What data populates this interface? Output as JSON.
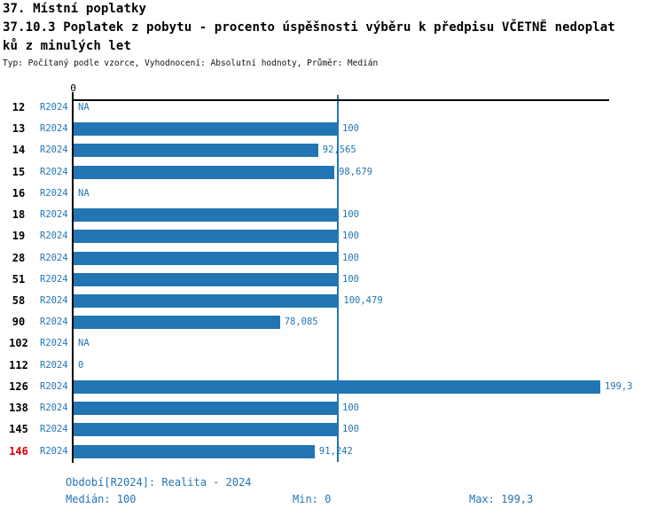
{
  "header": {
    "section_title": "37. Místní poplatky",
    "title_line1": "37.10.3 Poplatek z pobytu - procento úspěšnosti výběru k předpisu VČETNĚ nedoplat",
    "title_line2": "ků z minulých let",
    "meta": "Typ: Počítaný podle vzorce, Vyhodnocení: Absolutní hodnoty, Průměr: Medián"
  },
  "colors": {
    "bar_blue": "#2276b4",
    "highlight_red": "#dc0000",
    "axis_black": "#000000"
  },
  "chart": {
    "zero_tick": "0",
    "rows": [
      {
        "id": "12",
        "period": "R2024",
        "value": null,
        "label": "NA",
        "highlight": false
      },
      {
        "id": "13",
        "period": "R2024",
        "value": 100,
        "label": "100",
        "highlight": false
      },
      {
        "id": "14",
        "period": "R2024",
        "value": 92.565,
        "label": "92,565",
        "highlight": false
      },
      {
        "id": "15",
        "period": "R2024",
        "value": 98.679,
        "label": "98,679",
        "highlight": false
      },
      {
        "id": "16",
        "period": "R2024",
        "value": null,
        "label": "NA",
        "highlight": false
      },
      {
        "id": "18",
        "period": "R2024",
        "value": 100,
        "label": "100",
        "highlight": false
      },
      {
        "id": "19",
        "period": "R2024",
        "value": 100,
        "label": "100",
        "highlight": false
      },
      {
        "id": "28",
        "period": "R2024",
        "value": 100,
        "label": "100",
        "highlight": false
      },
      {
        "id": "51",
        "period": "R2024",
        "value": 100,
        "label": "100",
        "highlight": false
      },
      {
        "id": "58",
        "period": "R2024",
        "value": 100.479,
        "label": "100,479",
        "highlight": false
      },
      {
        "id": "90",
        "period": "R2024",
        "value": 78.085,
        "label": "78,085",
        "highlight": false
      },
      {
        "id": "102",
        "period": "R2024",
        "value": null,
        "label": "NA",
        "highlight": false
      },
      {
        "id": "112",
        "period": "R2024",
        "value": 0,
        "label": "0",
        "highlight": false
      },
      {
        "id": "126",
        "period": "R2024",
        "value": 199.3,
        "label": "199,3",
        "highlight": false
      },
      {
        "id": "138",
        "period": "R2024",
        "value": 100,
        "label": "100",
        "highlight": false
      },
      {
        "id": "145",
        "period": "R2024",
        "value": 100,
        "label": "100",
        "highlight": false
      },
      {
        "id": "146",
        "period": "R2024",
        "value": 91.242,
        "label": "91,242",
        "highlight": true
      }
    ]
  },
  "chart_data": {
    "type": "bar",
    "orientation": "horizontal",
    "title": "37.10.3 Poplatek z pobytu - procento úspěšnosti výběru k předpisu VČETNĚ nedoplatků z minulých let",
    "categories": [
      "12",
      "13",
      "14",
      "15",
      "16",
      "18",
      "19",
      "28",
      "51",
      "58",
      "90",
      "102",
      "112",
      "126",
      "138",
      "145",
      "146"
    ],
    "series": [
      {
        "name": "R2024",
        "values": [
          null,
          100,
          92.565,
          98.679,
          null,
          100,
          100,
          100,
          100,
          100.479,
          78.085,
          null,
          0,
          199.3,
          100,
          100,
          91.242
        ]
      }
    ],
    "value_labels": [
      "NA",
      "100",
      "92,565",
      "98,679",
      "NA",
      "100",
      "100",
      "100",
      "100",
      "100,479",
      "78,085",
      "NA",
      "0",
      "199,3",
      "100",
      "100",
      "91,242"
    ],
    "xlim": [
      0,
      202.3
    ],
    "x_ticks": [
      "0"
    ],
    "reference_line": {
      "value": 100,
      "meaning": "Medián"
    },
    "grid": false,
    "legend": false,
    "stats": {
      "median": 100,
      "min": 0,
      "max": 199.3
    }
  },
  "footer": {
    "period": "Období[R2024]: Realita - 2024",
    "median": "Medián: 100",
    "min": "Min: 0",
    "max": "Max: 199,3"
  }
}
